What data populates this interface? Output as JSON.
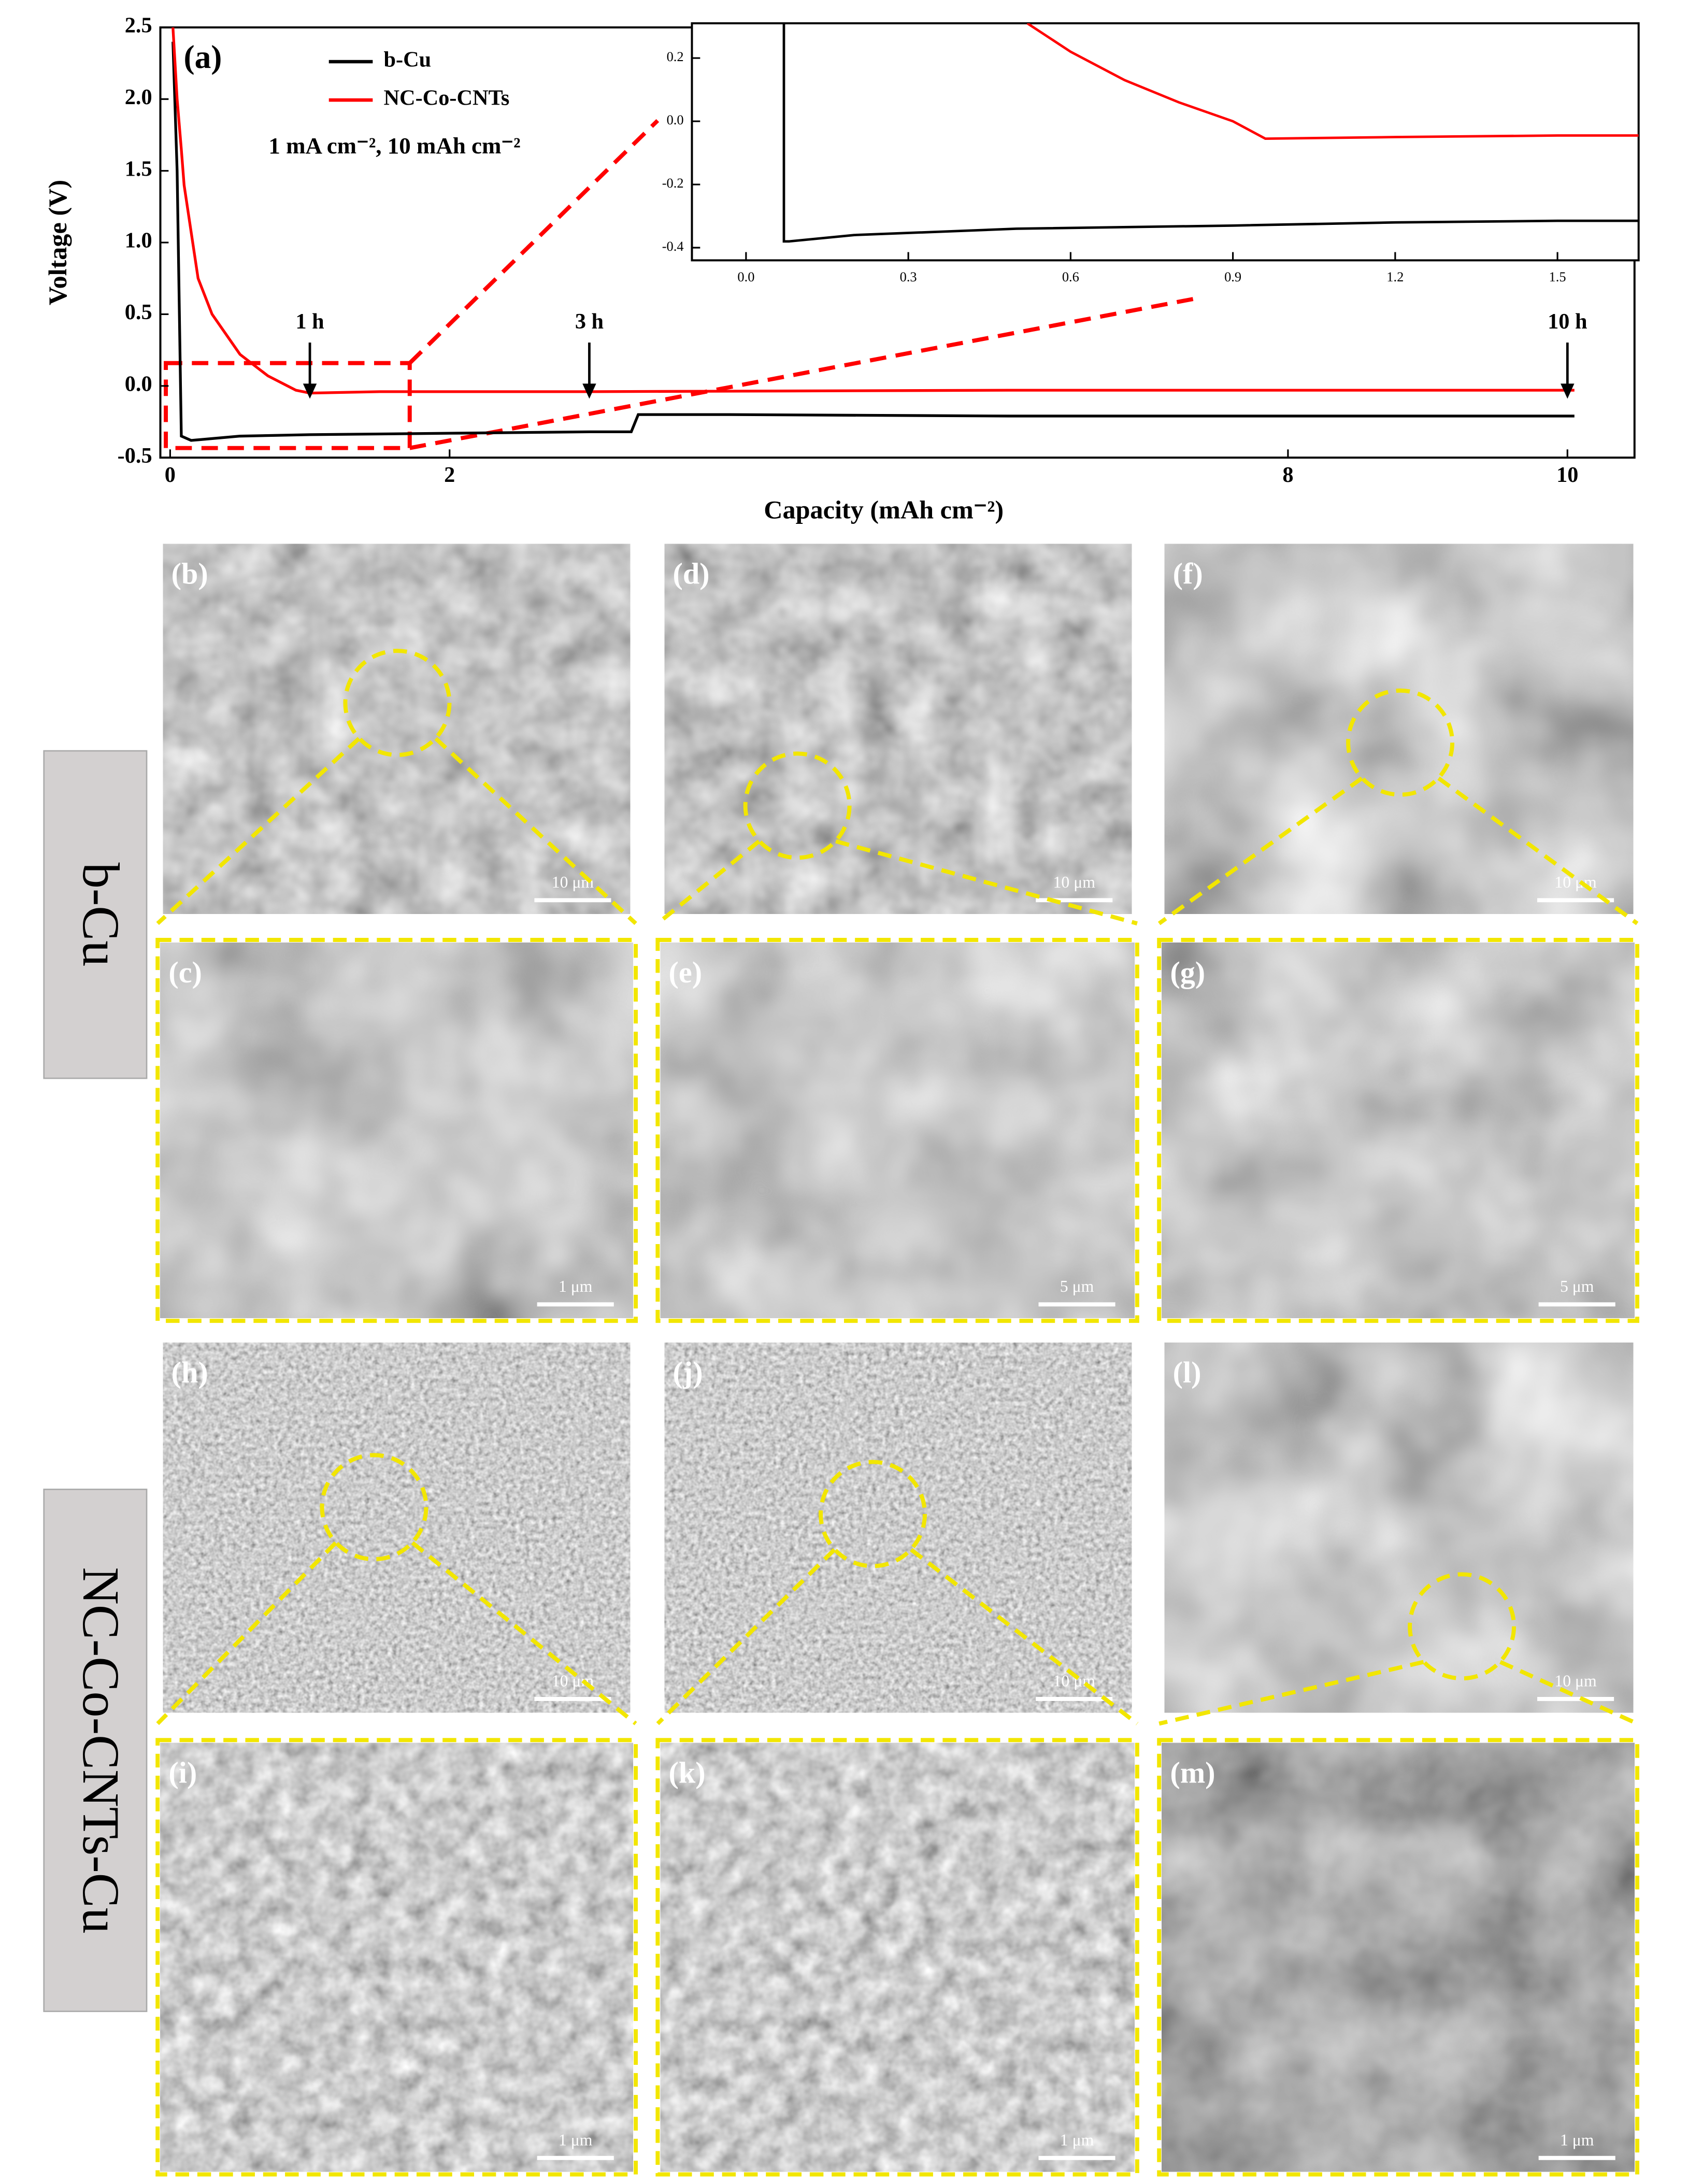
{
  "chart_data": [
    {
      "type": "line",
      "panel_label": "(a)",
      "x_label": "Capacity (mAh cm⁻²)",
      "y_label": "Voltage (V)",
      "condition_text": "1 mA cm⁻², 10 mAh cm⁻²",
      "xlim": [
        -0.07,
        10.48
      ],
      "ylim": [
        -0.5,
        2.5
      ],
      "xticks": [
        0,
        2,
        8,
        10
      ],
      "yticks": [
        -0.5,
        {
          "value": 0,
          "label": "0.0"
        },
        0.5,
        {
          "value": 1,
          "label": "1.0"
        },
        1.5,
        {
          "value": 2,
          "label": "2.0"
        },
        2.5
      ],
      "annotations": [
        {
          "text": "1 h",
          "x": 1
        },
        {
          "text": "3 h",
          "x": 3
        },
        {
          "text": "10 h",
          "x": 10
        }
      ],
      "series": [
        {
          "name": "b-Cu",
          "color": "#000000",
          "x": [
            0.02,
            0.05,
            0.08,
            0.15,
            0.5,
            1,
            2,
            3,
            3.3,
            3.35,
            4,
            6,
            8,
            10.05
          ],
          "values": [
            2.4,
            1.5,
            -0.35,
            -0.38,
            -0.35,
            -0.34,
            -0.33,
            -0.32,
            -0.32,
            -0.2,
            -0.2,
            -0.21,
            -0.21,
            -0.21
          ]
        },
        {
          "name": "NC-Co-CNTs",
          "color": "#ff0000",
          "x": [
            0.02,
            0.05,
            0.08,
            0.1,
            0.2,
            0.3,
            0.5,
            0.7,
            0.9,
            1.0,
            1.5,
            3,
            6,
            10.05
          ],
          "values": [
            2.5,
            2.0,
            1.65,
            1.4,
            0.75,
            0.5,
            0.22,
            0.07,
            -0.03,
            -0.05,
            -0.04,
            -0.04,
            -0.03,
            -0.03
          ]
        }
      ]
    },
    {
      "type": "line",
      "xlim": [
        -0.1,
        1.65
      ],
      "ylim": [
        -0.44,
        0.31
      ],
      "xticks": [
        {
          "value": 0,
          "label": "0.0"
        },
        0.3,
        0.6,
        0.9,
        1.2,
        1.5
      ],
      "yticks": [
        -0.4,
        -0.2,
        {
          "value": 0,
          "label": "0.0"
        },
        0.2
      ],
      "series": [
        {
          "color": "#000000",
          "x": [
            0.07,
            0.07,
            0.08,
            0.2,
            0.5,
            0.9,
            1.2,
            1.5,
            1.65
          ],
          "values": [
            0.31,
            -0.38,
            -0.38,
            -0.36,
            -0.34,
            -0.33,
            -0.32,
            -0.315,
            -0.315
          ]
        },
        {
          "color": "#ff0000",
          "x": [
            0.52,
            0.6,
            0.7,
            0.8,
            0.9,
            0.96,
            1.2,
            1.5,
            1.65
          ],
          "values": [
            0.31,
            0.22,
            0.13,
            0.06,
            0.0,
            -0.055,
            -0.05,
            -0.045,
            -0.045
          ]
        }
      ]
    }
  ],
  "side_labels": [
    "b-Cu",
    "NC-Co-CNTs-Cu"
  ],
  "panels": [
    {
      "label": "(b)",
      "scale_bar": "10 μm"
    },
    {
      "label": "(d)",
      "scale_bar": "10 μm"
    },
    {
      "label": "(f)",
      "scale_bar": "10 μm"
    },
    {
      "label": "(c)",
      "scale_bar": "1 μm"
    },
    {
      "label": "(e)",
      "scale_bar": "5 μm"
    },
    {
      "label": "(g)",
      "scale_bar": "5 μm"
    },
    {
      "label": "(h)",
      "scale_bar": "10 μm"
    },
    {
      "label": "(j)",
      "scale_bar": "10 μm"
    },
    {
      "label": "(l)",
      "scale_bar": "10 μm"
    },
    {
      "label": "(i)",
      "scale_bar": "1 μm"
    },
    {
      "label": "(k)",
      "scale_bar": "1 μm"
    },
    {
      "label": "(m)",
      "scale_bar": "1 μm"
    }
  ]
}
